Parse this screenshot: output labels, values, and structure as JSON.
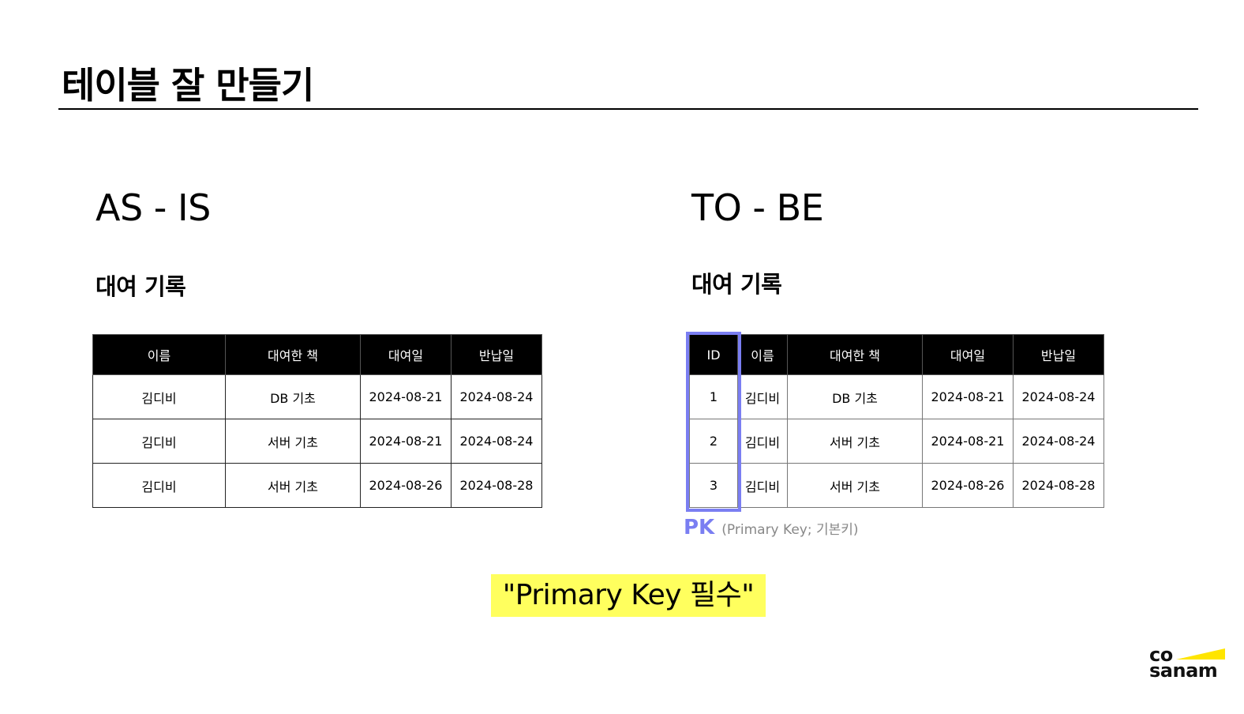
{
  "title": "테이블 잘 만들기",
  "as_is": {
    "heading": "AS - IS",
    "subheading": "대여 기록",
    "columns": [
      "이름",
      "대여한 책",
      "대여일",
      "반납일"
    ],
    "rows": [
      [
        "김디비",
        "DB 기초",
        "2024-08-21",
        "2024-08-24"
      ],
      [
        "김디비",
        "서버 기초",
        "2024-08-21",
        "2024-08-24"
      ],
      [
        "김디비",
        "서버 기초",
        "2024-08-26",
        "2024-08-28"
      ]
    ]
  },
  "to_be": {
    "heading": "TO - BE",
    "subheading": "대여 기록",
    "columns": [
      "ID",
      "이름",
      "대여한 책",
      "대여일",
      "반납일"
    ],
    "rows": [
      [
        "1",
        "김디비",
        "DB 기초",
        "2024-08-21",
        "2024-08-24"
      ],
      [
        "2",
        "김디비",
        "서버 기초",
        "2024-08-21",
        "2024-08-24"
      ],
      [
        "3",
        "김디비",
        "서버 기초",
        "2024-08-26",
        "2024-08-28"
      ]
    ],
    "pk_label": "PK",
    "pk_description": "(Primary Key; 기본키)"
  },
  "callout": "\"Primary Key 필수\"",
  "logo": {
    "line1": "co",
    "line2": "sanam"
  },
  "colors": {
    "pk_accent": "#7a7ef2",
    "highlight": "#ffff5e",
    "logo_accent": "#ffe500"
  }
}
